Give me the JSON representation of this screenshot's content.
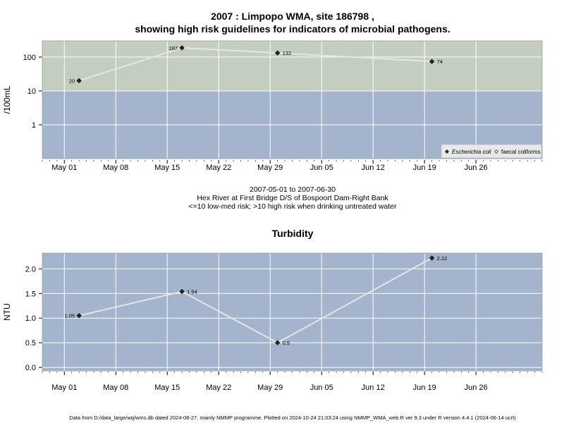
{
  "header": {
    "title_line1": "2007 : Limpopo WMA, site 186798 ,",
    "title_line2": "showing high risk guidelines for indicators of microbial pathogens."
  },
  "subtitle": {
    "line1": "2007-05-01 to 2007-06-30",
    "line2": "Hex River at First Bridge D/S of Bospoort Dam-Right Bank",
    "line3": "<=10 low-med risk; >10 high risk when drinking untreated water"
  },
  "footer": "Data from D:/data_large/wq/wms.db dated 2024-08-27, mainly NMMP programme. Plotted on 2024-10-24 21:03:24 using NMMP_WMA_web.R ver 9.3 under R version 4.4.1 (2024-06-14 ucrt)",
  "colors": {
    "high_risk_band": "#c3cdc0",
    "low_risk_band": "#a3b4cc",
    "grid": "#ffffff",
    "line": "#e6e6e6",
    "marker": "#222222"
  },
  "chart_data": [
    {
      "type": "line",
      "title": "",
      "ylabel": "/100mL",
      "yscale": "log",
      "ylim": [
        0.1,
        300
      ],
      "yticks": [
        1,
        10,
        100
      ],
      "ytick_labels": [
        "1",
        "10",
        "100"
      ],
      "xlim": [
        "2007-04-28",
        "2007-07-05"
      ],
      "xticks": [
        "2007-05-01",
        "2007-05-08",
        "2007-05-15",
        "2007-05-22",
        "2007-05-29",
        "2007-06-05",
        "2007-06-12",
        "2007-06-19",
        "2007-06-26"
      ],
      "xtick_labels": [
        "May 01",
        "May 08",
        "May 15",
        "May 22",
        "May 29",
        "Jun 05",
        "Jun 12",
        "Jun 19",
        "Jun 26"
      ],
      "bands": [
        {
          "from": 10,
          "to": 300,
          "meaning": ">10 high risk"
        },
        {
          "from": 0.1,
          "to": 10,
          "meaning": "<=10 low-med risk"
        }
      ],
      "grid": true,
      "legend": {
        "position": "bottom-right",
        "entries": [
          {
            "label": "Escherichia coli",
            "marker": "filled-diamond",
            "italic": true
          },
          {
            "label": "faecal coliforms",
            "marker": "open-diamond",
            "italic": false
          }
        ]
      },
      "series": [
        {
          "name": "Escherichia coli",
          "x": [
            "2007-05-03",
            "2007-05-17",
            "2007-05-30",
            "2007-06-20"
          ],
          "values": [
            20,
            187,
            132,
            74
          ],
          "labels": [
            "20",
            "187",
            "132",
            "74"
          ]
        }
      ]
    },
    {
      "type": "line",
      "title": "Turbidity",
      "ylabel": "NTU",
      "yscale": "linear",
      "ylim": [
        -0.07,
        2.32
      ],
      "yticks": [
        0,
        0.5,
        1,
        1.5,
        2
      ],
      "ytick_labels": [
        "0.0",
        "0.5",
        "1.0",
        "1.5",
        "2.0"
      ],
      "xlim": [
        "2007-04-28",
        "2007-07-05"
      ],
      "xticks": [
        "2007-05-01",
        "2007-05-08",
        "2007-05-15",
        "2007-05-22",
        "2007-05-29",
        "2007-06-05",
        "2007-06-12",
        "2007-06-19",
        "2007-06-26"
      ],
      "xtick_labels": [
        "May 01",
        "May 08",
        "May 15",
        "May 22",
        "May 29",
        "Jun 05",
        "Jun 12",
        "Jun 19",
        "Jun 26"
      ],
      "grid": true,
      "series": [
        {
          "x": [
            "2007-05-03",
            "2007-05-17",
            "2007-05-30",
            "2007-06-20"
          ],
          "values": [
            1.05,
            1.54,
            0.5,
            2.22
          ],
          "labels": [
            "1.05",
            "1.54",
            "0.5",
            "2.22"
          ]
        }
      ]
    }
  ]
}
